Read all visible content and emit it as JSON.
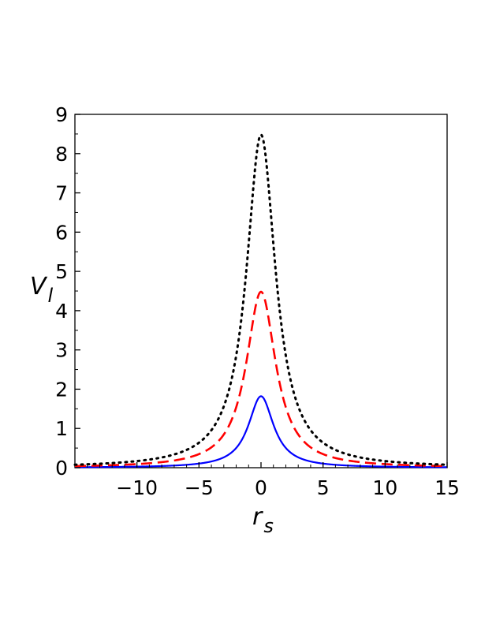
{
  "chart_data": {
    "type": "line",
    "xlabel": "r",
    "xlabel_sub": "s",
    "ylabel": "V",
    "ylabel_sub": "l",
    "xlim": [
      -15,
      15
    ],
    "ylim": [
      0,
      9
    ],
    "x_ticks": [
      "-10",
      "-5",
      "0",
      "5",
      "10",
      "15"
    ],
    "y_ticks": [
      "0",
      "1",
      "2",
      "3",
      "4",
      "5",
      "6",
      "7",
      "8",
      "9"
    ],
    "grid": false,
    "legend": "none",
    "series": [
      {
        "style": "solid",
        "color": "#0000ff",
        "x": [
          -15,
          -10,
          -7,
          -5,
          -4,
          -3,
          -2,
          -1.5,
          -1,
          -0.5,
          0,
          0.5,
          1,
          1.5,
          2,
          3,
          4,
          5,
          7,
          10,
          15
        ],
        "y": [
          0.02,
          0.04,
          0.07,
          0.12,
          0.17,
          0.27,
          0.5,
          0.72,
          1.08,
          1.55,
          1.82,
          1.55,
          1.08,
          0.72,
          0.5,
          0.27,
          0.17,
          0.12,
          0.07,
          0.04,
          0.02
        ]
      },
      {
        "style": "dashed",
        "color": "#ff0000",
        "x": [
          -15,
          -10,
          -7,
          -5,
          -4,
          -3,
          -2,
          -1.5,
          -1,
          -0.5,
          0,
          0.5,
          1,
          1.5,
          2,
          3,
          4,
          5,
          7,
          10,
          15
        ],
        "y": [
          0.04,
          0.09,
          0.17,
          0.33,
          0.5,
          0.82,
          1.55,
          2.15,
          3.0,
          3.95,
          4.48,
          3.95,
          3.0,
          2.15,
          1.55,
          0.82,
          0.5,
          0.33,
          0.17,
          0.09,
          0.04
        ]
      },
      {
        "style": "dotted",
        "color": "#000000",
        "x": [
          -15,
          -10,
          -7,
          -5,
          -4,
          -3,
          -2,
          -1.5,
          -1,
          -0.5,
          0,
          0.5,
          1,
          1.5,
          2,
          3,
          4,
          5,
          7,
          10,
          15
        ],
        "y": [
          0.08,
          0.17,
          0.33,
          0.62,
          0.92,
          1.5,
          2.85,
          4.0,
          5.6,
          7.5,
          8.48,
          7.5,
          5.6,
          4.0,
          2.85,
          1.5,
          0.92,
          0.62,
          0.33,
          0.17,
          0.08
        ]
      }
    ]
  }
}
